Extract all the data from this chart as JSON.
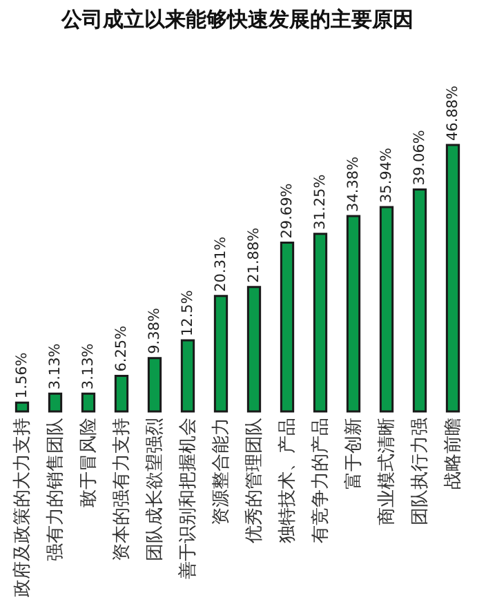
{
  "chart_data": {
    "type": "bar",
    "title": "公司成立以来能够快速发展的主要原因",
    "categories": [
      "政府及政策的大力支持",
      "强有力的销售团队",
      "敢于冒风险",
      "资本的强有力支持",
      "团队成长欲望强烈",
      "善于识别和把握机会",
      "资源整合能力",
      "优秀的管理团队",
      "独特技术、产品",
      "有竞争力的产品",
      "富于创新",
      "商业模式清晰",
      "团队执行力强",
      "战略前瞻"
    ],
    "values": [
      1.56,
      3.13,
      3.13,
      6.25,
      9.38,
      12.5,
      20.31,
      21.88,
      29.69,
      31.25,
      34.38,
      35.94,
      39.06,
      46.88
    ],
    "value_labels": [
      "1.56%",
      "3.13%",
      "3.13%",
      "6.25%",
      "9.38%",
      "12.5%",
      "20.31%",
      "21.88%",
      "29.69%",
      "31.25%",
      "34.38%",
      "35.94%",
      "39.06%",
      "46.88%"
    ],
    "color": "#0a9a4a",
    "tick_labels": "x",
    "grid": false
  }
}
